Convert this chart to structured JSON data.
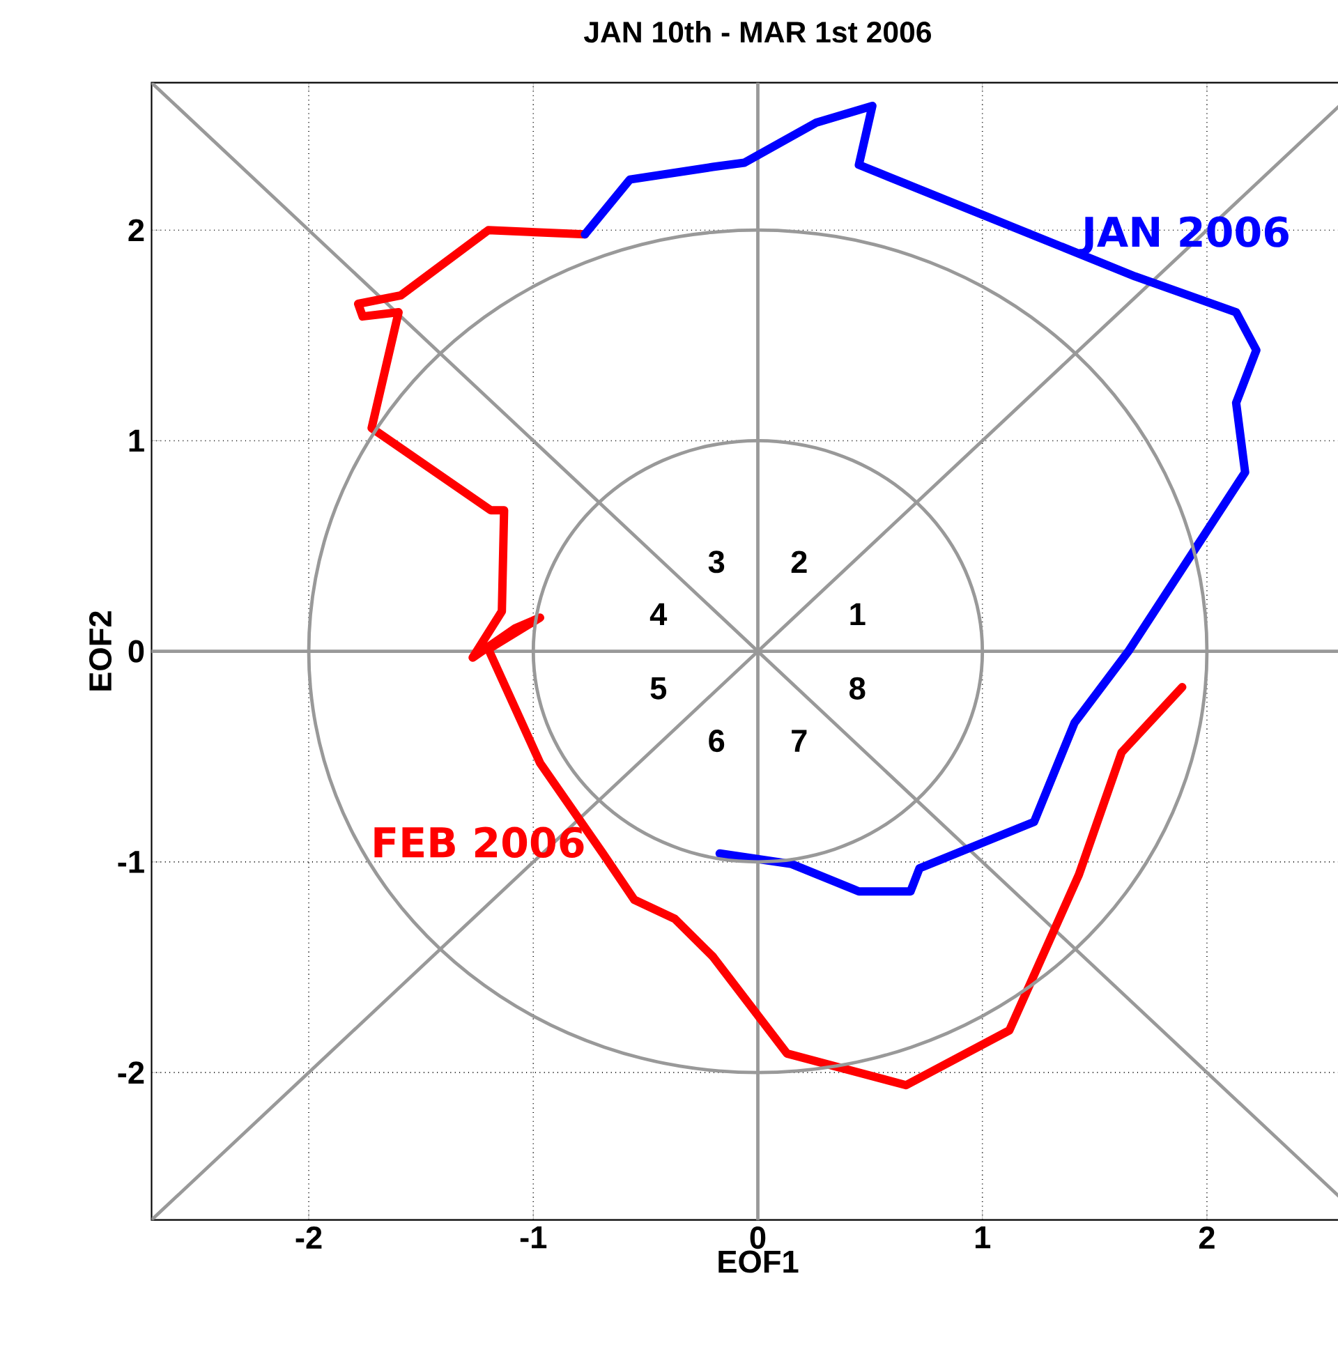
{
  "chart_data": {
    "type": "line",
    "title": "JAN 10th - MAR 1st 2006",
    "xlabel": "EOF1",
    "ylabel": "EOF2",
    "xlim": [
      -2.7,
      2.7
    ],
    "ylim": [
      -2.7,
      2.7
    ],
    "xticks": [
      -2,
      -1,
      0,
      1,
      2
    ],
    "yticks": [
      -2,
      -1,
      0,
      1,
      2
    ],
    "grid": true,
    "line_style": "solid",
    "series": [
      {
        "name": "JAN 2006",
        "color": "#0000ff",
        "x": [
          -0.17,
          0.15,
          0.45,
          0.68,
          0.72,
          1.23,
          1.41,
          1.65,
          2.17,
          2.13,
          2.22,
          2.13,
          1.68,
          0.45,
          0.51,
          0.26,
          -0.06,
          -0.2,
          -0.57,
          -0.77
        ],
        "values": [
          -0.96,
          -1.01,
          -1.14,
          -1.14,
          -1.03,
          -0.81,
          -0.34,
          0.0,
          0.85,
          1.18,
          1.43,
          1.61,
          1.78,
          2.31,
          2.59,
          2.51,
          2.32,
          2.3,
          2.24,
          1.98
        ]
      },
      {
        "name": "FEB 2006",
        "color": "#ff0000",
        "x": [
          -0.77,
          -1.2,
          -1.59,
          -1.78,
          -1.76,
          -1.6,
          -1.72,
          -1.19,
          -1.13,
          -1.14,
          -1.27,
          -1.08,
          -0.97,
          -1.2,
          -0.97,
          -0.69,
          -0.55,
          -0.37,
          -0.2,
          0.13,
          0.66,
          1.12,
          1.43,
          1.62,
          1.89
        ],
        "values": [
          1.98,
          2.0,
          1.69,
          1.65,
          1.59,
          1.61,
          1.06,
          0.67,
          0.67,
          0.19,
          -0.03,
          0.11,
          0.16,
          0.01,
          -0.53,
          -0.96,
          -1.18,
          -1.27,
          -1.45,
          -1.91,
          -2.06,
          -1.8,
          -1.06,
          -0.48,
          -0.17
        ]
      },
      {
        "color": "#999999",
        "x": [
          -2.7,
          2.7
        ],
        "values": [
          -2.7,
          2.7
        ]
      },
      {
        "color": "#999999",
        "x": [
          -2.7,
          2.7
        ],
        "values": [
          2.7,
          -2.7
        ]
      },
      {
        "color": "#999999",
        "x": [
          -2.7,
          2.7
        ],
        "values": [
          0,
          0
        ]
      },
      {
        "color": "#999999",
        "x": [
          0,
          0
        ],
        "values": [
          -2.7,
          2.7
        ]
      }
    ],
    "annotations": [
      "1",
      "2",
      "3",
      "4",
      "5",
      "6",
      "7",
      "8"
    ]
  }
}
